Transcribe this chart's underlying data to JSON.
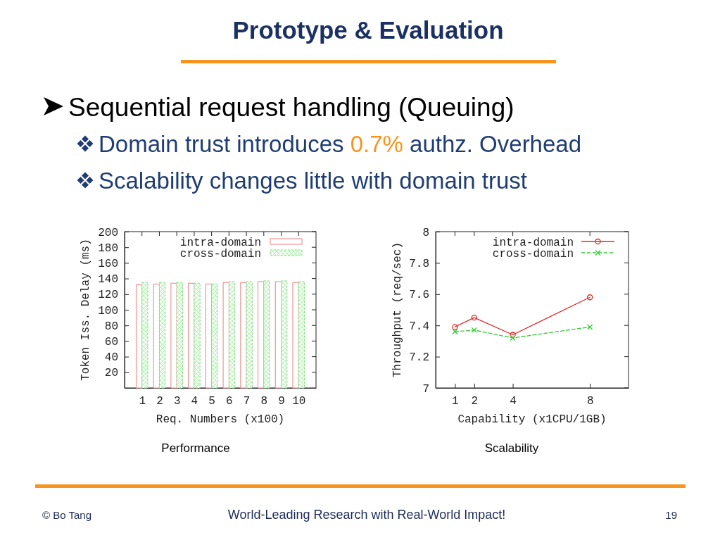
{
  "chart_data": [
    {
      "type": "other",
      "title": "Prototype & Evaluation",
      "subtitle": "Sequential request handling (Queuing)",
      "annotations": [
        "Domain trust introduces 0.7% authz. Overhead",
        "Scalability changes little with domain trust",
        "© Bo Tang",
        "World-Leading Research with Real-World Impact!",
        "19"
      ]
    },
    {
      "type": "bar",
      "title": "Performance",
      "xlabel": "Req. Numbers (x100)",
      "ylabel": "Token Iss. Delay (ms)",
      "categories": [
        "1",
        "2",
        "3",
        "4",
        "5",
        "6",
        "7",
        "8",
        "9",
        "10"
      ],
      "series": [
        {
          "name": "intra-domain",
          "color": "#f08080",
          "values": [
            132,
            133,
            134,
            134,
            133,
            135,
            135,
            136,
            136,
            135
          ]
        },
        {
          "name": "cross-domain",
          "color": "#7ee07e",
          "values": [
            135,
            135,
            135,
            134,
            133,
            136,
            136,
            137,
            137,
            136
          ]
        }
      ],
      "ylim": [
        0,
        200
      ],
      "yticks": [
        20,
        40,
        60,
        80,
        100,
        120,
        140,
        160,
        180,
        200
      ],
      "legend": "top right"
    },
    {
      "type": "line",
      "title": "Scalability",
      "xlabel": "Capability (x1CPU/1GB)",
      "ylabel": "Throughput (req/sec)",
      "x": [
        1,
        2,
        4,
        8
      ],
      "series": [
        {
          "name": "intra-domain",
          "color": "#e02828",
          "values": [
            7.39,
            7.45,
            7.34,
            7.58
          ],
          "marker": "circle",
          "line_style": "solid"
        },
        {
          "name": "cross-domain",
          "color": "#33cc33",
          "values": [
            7.36,
            7.37,
            7.32,
            7.39
          ],
          "marker": "cross",
          "line_style": "dashed"
        }
      ],
      "xlim": [
        0,
        10
      ],
      "xticks": [
        1,
        2,
        4,
        8
      ],
      "ylim": [
        7,
        8
      ],
      "yticks": [
        7,
        7.2,
        7.4,
        7.6,
        7.8,
        8
      ],
      "legend": "top right"
    }
  ]
}
